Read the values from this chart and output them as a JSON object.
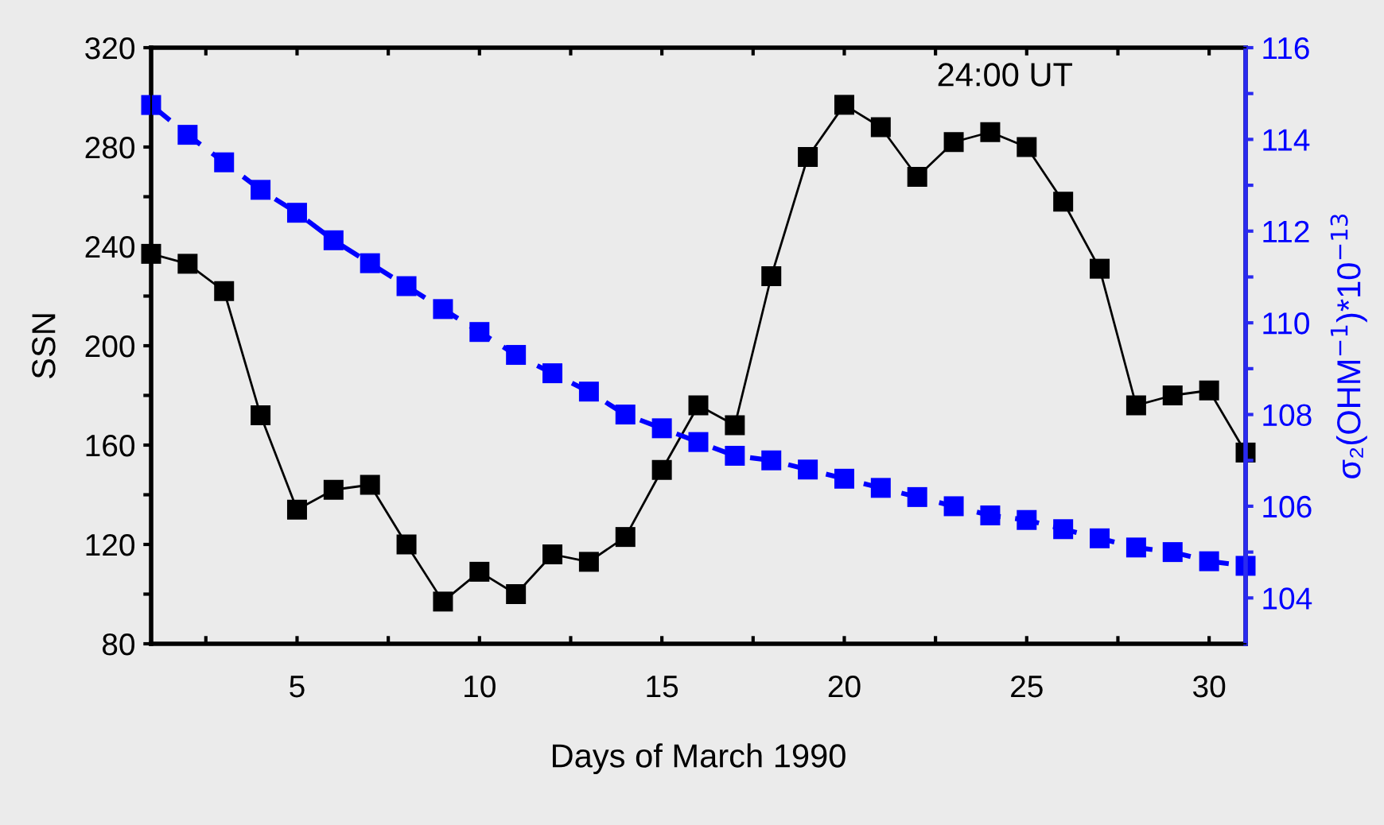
{
  "chart_data": {
    "type": "line",
    "xlabel": "Days of March 1990",
    "ylabel": "SSN",
    "y2label": "σ₂(OHM$^{−1}$)*10$^{−13}$",
    "annotations": [
      "24:00 UT"
    ],
    "x": [
      1,
      2,
      3,
      4,
      5,
      6,
      7,
      8,
      9,
      10,
      11,
      12,
      13,
      14,
      15,
      16,
      17,
      18,
      19,
      20,
      21,
      22,
      23,
      24,
      25,
      26,
      27,
      28,
      29,
      30,
      31
    ],
    "xlim": [
      1,
      31
    ],
    "xticks": [
      {
        "value": 2.5,
        "label": null
      },
      5,
      {
        "value": 7.5,
        "label": null
      },
      10,
      {
        "value": 12.5,
        "label": null
      },
      15,
      {
        "value": 17.5,
        "label": null
      },
      20,
      {
        "value": 22.5,
        "label": null
      },
      25,
      {
        "value": 27.5,
        "label": null
      },
      30
    ],
    "ylim": [
      80,
      320
    ],
    "yticks": [
      80,
      {
        "value": 100,
        "label": null
      },
      120,
      {
        "value": 140,
        "label": null
      },
      160,
      {
        "value": 180,
        "label": null
      },
      200,
      {
        "value": 220,
        "label": null
      },
      240,
      {
        "value": 260,
        "label": null
      },
      280,
      {
        "value": 300,
        "label": null
      },
      320
    ],
    "y2lim": [
      103,
      116
    ],
    "y2ticks": [
      104,
      {
        "value": 105,
        "label": null
      },
      106,
      {
        "value": 107,
        "label": null
      },
      108,
      {
        "value": 109,
        "label": null
      },
      110,
      {
        "value": 111,
        "label": null
      },
      112,
      {
        "value": 113,
        "label": null
      },
      114,
      {
        "value": 115,
        "label": null
      },
      116
    ],
    "marker": "square",
    "grid": false,
    "legend": false,
    "series": [
      {
        "color": "#000000",
        "line_style": "solid",
        "values": [
          237,
          233,
          222,
          172,
          134,
          142,
          144,
          120,
          97,
          109,
          100,
          116,
          113,
          123,
          150,
          176,
          168,
          228,
          276,
          297,
          288,
          268,
          282,
          286,
          280,
          258,
          231,
          176,
          180,
          182,
          157
        ]
      },
      {
        "color": "#0000ff",
        "line_style": "dashed",
        "axis": "y2",
        "values": [
          114.75,
          114.1,
          113.5,
          112.9,
          112.4,
          111.8,
          111.3,
          110.8,
          110.3,
          109.8,
          109.3,
          108.9,
          108.5,
          108.0,
          107.7,
          107.4,
          107.1,
          107.0,
          106.8,
          106.6,
          106.4,
          106.2,
          106.0,
          105.8,
          105.7,
          105.5,
          105.3,
          105.1,
          105.0,
          104.8,
          104.7
        ]
      }
    ]
  }
}
